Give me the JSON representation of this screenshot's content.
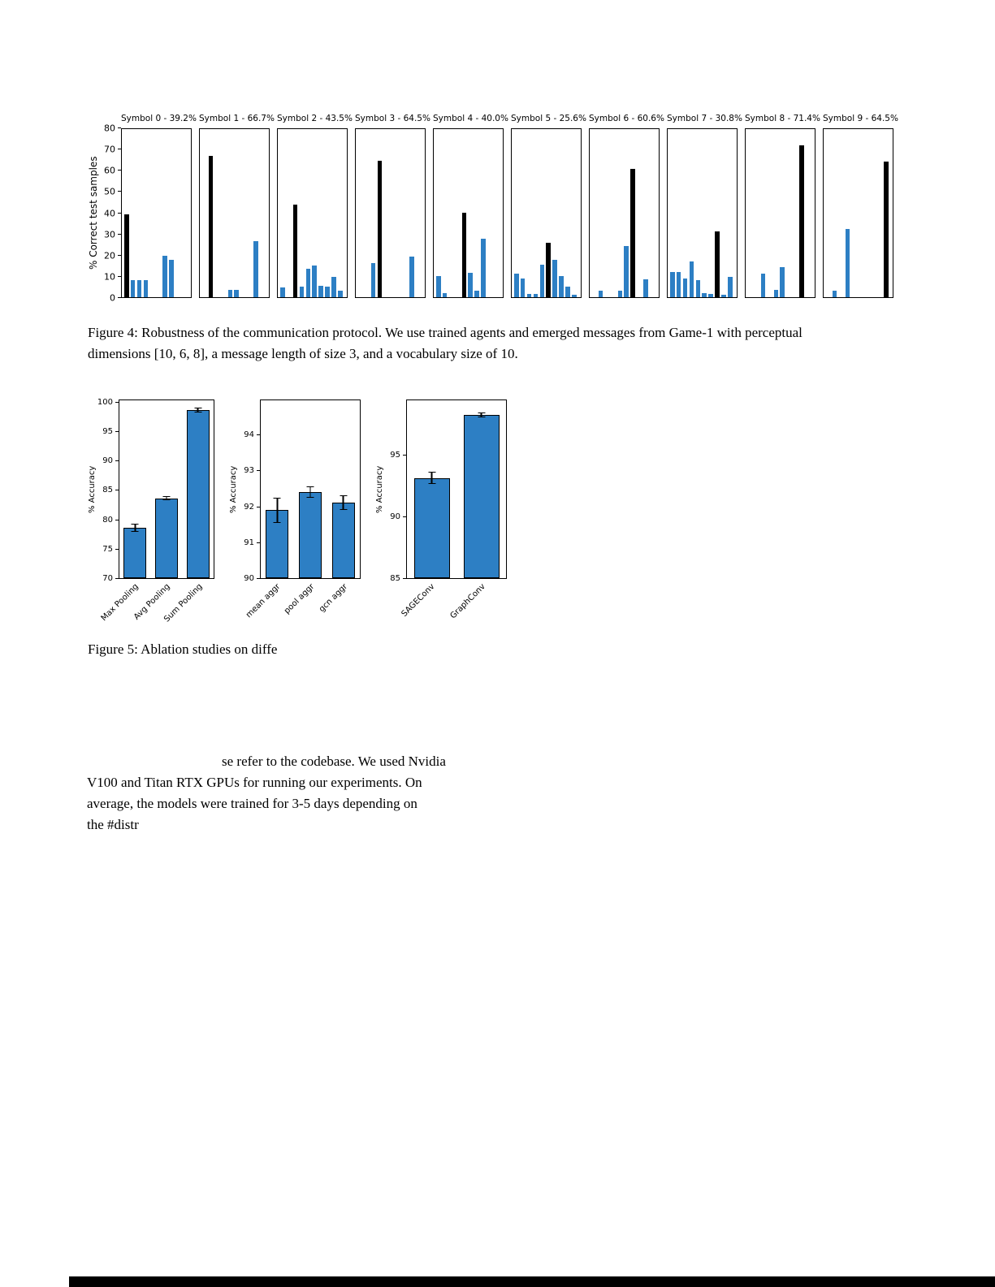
{
  "chart_data": [
    {
      "type": "bar",
      "figure": "Figure 4",
      "ylabel": "% Correct test samples",
      "ylim": [
        0,
        80
      ],
      "yticks": [
        0,
        10,
        20,
        30,
        40,
        50,
        60,
        70,
        80
      ],
      "bar_color": "#2d7fc4",
      "highlight_color": "#000000",
      "panels": [
        {
          "title": "Symbol 0 - 39.2%",
          "highlight": 0,
          "values": [
            39,
            8,
            8,
            8,
            0,
            0,
            19.5,
            17.5,
            0,
            0
          ]
        },
        {
          "title": "Symbol 1 - 66.7%",
          "highlight": 1,
          "values": [
            0,
            66.5,
            0,
            0,
            3.5,
            3.5,
            0,
            0,
            26.5,
            0
          ]
        },
        {
          "title": "Symbol 2 - 43.5%",
          "highlight": 2,
          "values": [
            4.5,
            0,
            43.5,
            5,
            13.5,
            15,
            5.5,
            5,
            9.5,
            3
          ]
        },
        {
          "title": "Symbol 3 - 64.5%",
          "highlight": 3,
          "values": [
            0,
            0,
            16,
            64.5,
            0,
            0,
            0,
            0,
            19,
            0
          ]
        },
        {
          "title": "Symbol 4 - 40.0%",
          "highlight": 4,
          "values": [
            10,
            2,
            0,
            0,
            40,
            11.5,
            3,
            27.5,
            0,
            0
          ]
        },
        {
          "title": "Symbol 5 - 25.6%",
          "highlight": 5,
          "values": [
            11,
            9,
            1.5,
            1.5,
            15.5,
            25.5,
            17.5,
            10,
            5,
            1
          ]
        },
        {
          "title": "Symbol 6 - 60.6%",
          "highlight": 6,
          "values": [
            0,
            3,
            0,
            0,
            3,
            24,
            60.5,
            0,
            8.5,
            0
          ]
        },
        {
          "title": "Symbol 7 - 30.8%",
          "highlight": 7,
          "values": [
            12,
            12,
            9,
            17,
            8,
            2,
            1.5,
            31,
            1,
            9.5
          ]
        },
        {
          "title": "Symbol 8 - 71.4%",
          "highlight": 8,
          "values": [
            0,
            0,
            11,
            0,
            3.5,
            14,
            0,
            0,
            71.5,
            0
          ]
        },
        {
          "title": "Symbol 9 - 64.5%",
          "highlight": 9,
          "values": [
            0,
            3,
            0,
            32,
            0,
            0,
            0,
            0,
            0,
            64
          ]
        }
      ]
    },
    {
      "type": "bar",
      "figure": "Figure 5a",
      "ylabel": "% Accuracy",
      "ylim": [
        70,
        100.5
      ],
      "yticks": [
        70,
        75,
        80,
        85,
        90,
        95,
        100
      ],
      "categories": [
        "Max Pooling",
        "Avg Pooling",
        "Sum Pooling"
      ],
      "values": [
        78.6,
        83.6,
        98.6
      ],
      "errors": [
        0.7,
        0.4,
        0.4
      ],
      "bar_color": "#2d7fc4"
    },
    {
      "type": "bar",
      "figure": "Figure 5b",
      "ylabel": "% Accuracy",
      "ylim": [
        90,
        95
      ],
      "yticks": [
        90,
        91,
        92,
        93,
        94
      ],
      "categories": [
        "mean aggr",
        "pool aggr",
        "gcn aggr"
      ],
      "values": [
        91.9,
        92.4,
        92.1
      ],
      "errors": [
        0.35,
        0.15,
        0.2
      ],
      "bar_color": "#2d7fc4"
    },
    {
      "type": "bar",
      "figure": "Figure 5c",
      "ylabel": "% Accuracy",
      "ylim": [
        85,
        99.5
      ],
      "yticks": [
        85,
        90,
        95
      ],
      "categories": [
        "SAGEConv",
        "GraphConv"
      ],
      "values": [
        93.1,
        98.2
      ],
      "errors": [
        0.5,
        0.2
      ],
      "bar_color": "#2d7fc4"
    }
  ],
  "captions": {
    "figure4_lines": [
      "Figure 4: Robustness of the communication protocol. We use trained agents and emerged messages from Game-1 with perceptual",
      "dimensions [10, 6, 8], a message length of size 3, and a vocabulary size of 10."
    ],
    "figure5": "Figure 5: Ablation studies on diffe"
  },
  "body_text": {
    "lines": [
      "se refer to the codebase. We used Nvidia",
      "V100 and Titan RTX GPUs for running our experiments. On",
      "average, the models were trained for 3-5 days depending on",
      "the #distr"
    ]
  }
}
